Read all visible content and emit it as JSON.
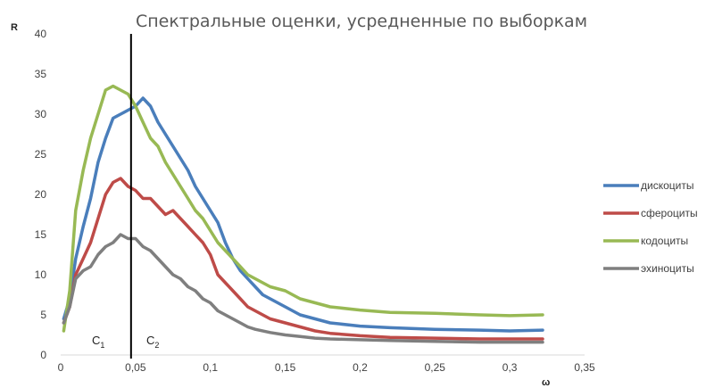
{
  "chart_data": {
    "type": "line",
    "title": "Спектральные оценки, усредненные по выборкам",
    "ylabel": "R",
    "xlabel": "ω",
    "xlim": [
      0,
      0.35
    ],
    "ylim": [
      0,
      40
    ],
    "x_ticks": [
      "0",
      "0,05",
      "0,1",
      "0,15",
      "0,2",
      "0,25",
      "0,3",
      "0,35"
    ],
    "y_ticks": [
      "0",
      "5",
      "10",
      "15",
      "20",
      "25",
      "30",
      "35",
      "40"
    ],
    "grid": false,
    "legend_position": "right",
    "annotations": {
      "divider_x": 0.047,
      "c1": {
        "base": "C",
        "sub": "1"
      },
      "c2": {
        "base": "C",
        "sub": "2"
      }
    },
    "series": [
      {
        "name": "дискоциты",
        "color": "#4a7ebb",
        "points": [
          [
            0.002,
            4.5
          ],
          [
            0.006,
            7
          ],
          [
            0.01,
            12
          ],
          [
            0.015,
            16
          ],
          [
            0.02,
            19.5
          ],
          [
            0.025,
            24
          ],
          [
            0.03,
            27
          ],
          [
            0.035,
            29.5
          ],
          [
            0.04,
            30
          ],
          [
            0.045,
            30.5
          ],
          [
            0.05,
            31
          ],
          [
            0.055,
            32
          ],
          [
            0.06,
            31
          ],
          [
            0.065,
            29
          ],
          [
            0.07,
            27.5
          ],
          [
            0.075,
            26
          ],
          [
            0.08,
            24.5
          ],
          [
            0.085,
            23
          ],
          [
            0.09,
            21
          ],
          [
            0.095,
            19.5
          ],
          [
            0.1,
            18
          ],
          [
            0.105,
            16.5
          ],
          [
            0.11,
            14
          ],
          [
            0.115,
            12
          ],
          [
            0.12,
            10.5
          ],
          [
            0.125,
            9.5
          ],
          [
            0.13,
            8.5
          ],
          [
            0.135,
            7.5
          ],
          [
            0.14,
            7
          ],
          [
            0.15,
            6
          ],
          [
            0.16,
            5
          ],
          [
            0.17,
            4.5
          ],
          [
            0.18,
            4
          ],
          [
            0.2,
            3.6
          ],
          [
            0.22,
            3.4
          ],
          [
            0.25,
            3.2
          ],
          [
            0.28,
            3.1
          ],
          [
            0.3,
            3
          ],
          [
            0.322,
            3.1
          ]
        ]
      },
      {
        "name": "сфероциты",
        "color": "#be4b48",
        "points": [
          [
            0.002,
            4
          ],
          [
            0.006,
            6
          ],
          [
            0.01,
            10
          ],
          [
            0.015,
            12
          ],
          [
            0.02,
            14
          ],
          [
            0.025,
            17
          ],
          [
            0.03,
            20
          ],
          [
            0.035,
            21.5
          ],
          [
            0.04,
            22
          ],
          [
            0.045,
            21
          ],
          [
            0.05,
            20.5
          ],
          [
            0.055,
            19.5
          ],
          [
            0.06,
            19.5
          ],
          [
            0.065,
            18.5
          ],
          [
            0.07,
            17.5
          ],
          [
            0.075,
            18
          ],
          [
            0.08,
            17
          ],
          [
            0.085,
            16
          ],
          [
            0.09,
            15
          ],
          [
            0.095,
            14
          ],
          [
            0.1,
            12.5
          ],
          [
            0.105,
            10
          ],
          [
            0.11,
            9
          ],
          [
            0.115,
            8
          ],
          [
            0.12,
            7
          ],
          [
            0.125,
            6
          ],
          [
            0.13,
            5.5
          ],
          [
            0.14,
            4.5
          ],
          [
            0.15,
            4
          ],
          [
            0.16,
            3.5
          ],
          [
            0.17,
            3
          ],
          [
            0.18,
            2.7
          ],
          [
            0.2,
            2.4
          ],
          [
            0.22,
            2.2
          ],
          [
            0.25,
            2.1
          ],
          [
            0.28,
            2
          ],
          [
            0.3,
            2
          ],
          [
            0.322,
            2
          ]
        ]
      },
      {
        "name": "кодоциты",
        "color": "#98b954",
        "points": [
          [
            0.002,
            3
          ],
          [
            0.006,
            8
          ],
          [
            0.01,
            18
          ],
          [
            0.015,
            23
          ],
          [
            0.02,
            27
          ],
          [
            0.025,
            30
          ],
          [
            0.03,
            33
          ],
          [
            0.035,
            33.5
          ],
          [
            0.04,
            33
          ],
          [
            0.045,
            32.5
          ],
          [
            0.05,
            31
          ],
          [
            0.055,
            29
          ],
          [
            0.06,
            27
          ],
          [
            0.065,
            26
          ],
          [
            0.07,
            24
          ],
          [
            0.075,
            22.5
          ],
          [
            0.08,
            21
          ],
          [
            0.085,
            19.5
          ],
          [
            0.09,
            18
          ],
          [
            0.095,
            17
          ],
          [
            0.1,
            15.5
          ],
          [
            0.105,
            14
          ],
          [
            0.11,
            13
          ],
          [
            0.115,
            12
          ],
          [
            0.12,
            11
          ],
          [
            0.125,
            10
          ],
          [
            0.13,
            9.5
          ],
          [
            0.14,
            8.5
          ],
          [
            0.15,
            8
          ],
          [
            0.16,
            7
          ],
          [
            0.17,
            6.5
          ],
          [
            0.18,
            6
          ],
          [
            0.2,
            5.6
          ],
          [
            0.22,
            5.3
          ],
          [
            0.25,
            5.2
          ],
          [
            0.28,
            5
          ],
          [
            0.3,
            4.9
          ],
          [
            0.322,
            5
          ]
        ]
      },
      {
        "name": "эхиноциты",
        "color": "#7f7f7f",
        "points": [
          [
            0.002,
            4
          ],
          [
            0.006,
            6
          ],
          [
            0.01,
            9.5
          ],
          [
            0.015,
            10.5
          ],
          [
            0.02,
            11
          ],
          [
            0.025,
            12.5
          ],
          [
            0.03,
            13.5
          ],
          [
            0.035,
            14
          ],
          [
            0.04,
            15
          ],
          [
            0.045,
            14.5
          ],
          [
            0.05,
            14.5
          ],
          [
            0.055,
            13.5
          ],
          [
            0.06,
            13
          ],
          [
            0.065,
            12
          ],
          [
            0.07,
            11
          ],
          [
            0.075,
            10
          ],
          [
            0.08,
            9.5
          ],
          [
            0.085,
            8.5
          ],
          [
            0.09,
            8
          ],
          [
            0.095,
            7
          ],
          [
            0.1,
            6.5
          ],
          [
            0.105,
            5.5
          ],
          [
            0.11,
            5
          ],
          [
            0.115,
            4.5
          ],
          [
            0.12,
            4
          ],
          [
            0.125,
            3.5
          ],
          [
            0.13,
            3.2
          ],
          [
            0.14,
            2.8
          ],
          [
            0.15,
            2.5
          ],
          [
            0.16,
            2.3
          ],
          [
            0.17,
            2.1
          ],
          [
            0.18,
            2
          ],
          [
            0.2,
            1.9
          ],
          [
            0.22,
            1.8
          ],
          [
            0.25,
            1.7
          ],
          [
            0.28,
            1.6
          ],
          [
            0.3,
            1.6
          ],
          [
            0.322,
            1.6
          ]
        ]
      }
    ]
  }
}
